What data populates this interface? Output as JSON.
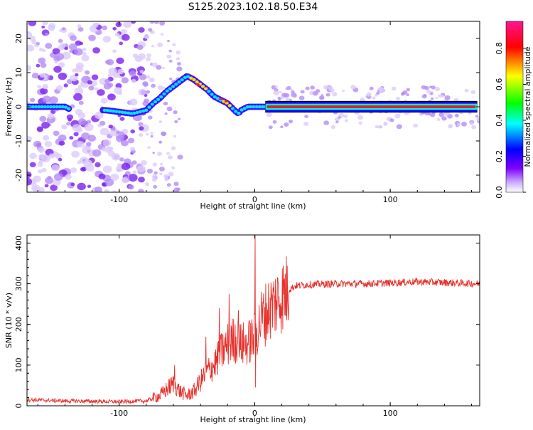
{
  "figure": {
    "title": "S125.2023.102.18.50.E34"
  },
  "chart_data": [
    {
      "type": "heatmap",
      "title": "S125.2023.102.18.50.E34",
      "xlabel": "Height of straight line (km)",
      "ylabel": "Frequency (Hz)",
      "xlim": [
        -168,
        166
      ],
      "ylim": [
        -25,
        25
      ],
      "xticks": [
        -100,
        0,
        100
      ],
      "yticks": [
        -20,
        -10,
        0,
        10,
        20
      ],
      "colorbar": {
        "label": "Normalized spectral amplitude",
        "range": [
          0,
          0.95
        ],
        "ticks": [
          0.0,
          0.2,
          0.4,
          0.6,
          0.8
        ],
        "colors": [
          "#ffffff",
          "#7f00ff",
          "#0000ff",
          "#00ffff",
          "#00ff00",
          "#ffff00",
          "#ff0000",
          "#ff1493"
        ]
      },
      "ridge": {
        "x": [
          -168,
          -140,
          -135,
          -110,
          -100,
          -90,
          -80,
          -75,
          -70,
          -65,
          -60,
          -55,
          -50,
          -45,
          -40,
          -35,
          -30,
          -25,
          -20,
          -15,
          -12,
          -10,
          -5,
          0,
          10,
          50,
          100,
          166
        ],
        "y": [
          0.0,
          0.0,
          -1.0,
          -1.0,
          -1.5,
          -2.0,
          -1.0,
          1.0,
          2.5,
          4.5,
          6.0,
          7.5,
          9.0,
          8.0,
          6.5,
          5.0,
          3.0,
          2.0,
          1.0,
          -1.0,
          -2.0,
          -1.0,
          0.0,
          0.0,
          0.0,
          0.0,
          0.0,
          0.0
        ]
      }
    },
    {
      "type": "line",
      "xlabel": "Height of straight line (km)",
      "ylabel": "SNR (10 * v/v)",
      "xlim": [
        -168,
        166
      ],
      "ylim": [
        0,
        420
      ],
      "xticks": [
        -100,
        0,
        100
      ],
      "yticks": [
        0,
        100,
        200,
        300,
        400
      ],
      "color": "#e8302a",
      "trend": {
        "x": [
          -168,
          -140,
          -100,
          -80,
          -70,
          -65,
          -60,
          -55,
          -50,
          -45,
          -40,
          -35,
          -30,
          -25,
          -20,
          -15,
          -10,
          -5,
          0,
          5,
          10,
          15,
          20,
          25,
          30,
          40,
          50,
          60,
          80,
          100,
          120,
          140,
          166
        ],
        "y": [
          15,
          12,
          10,
          12,
          25,
          40,
          55,
          35,
          25,
          35,
          60,
          85,
          100,
          130,
          150,
          165,
          150,
          155,
          170,
          215,
          235,
          255,
          270,
          285,
          295,
          298,
          299,
          300,
          300,
          302,
          305,
          303,
          300
        ]
      },
      "spikes": [
        {
          "x": -59,
          "y": 100
        },
        {
          "x": -36,
          "y": 170
        },
        {
          "x": -26,
          "y": 240
        },
        {
          "x": -19,
          "y": 275
        },
        {
          "x": -12,
          "y": 235
        },
        {
          "x": 0.3,
          "y": 420
        },
        {
          "x": 0.7,
          "y": 45
        }
      ]
    }
  ]
}
